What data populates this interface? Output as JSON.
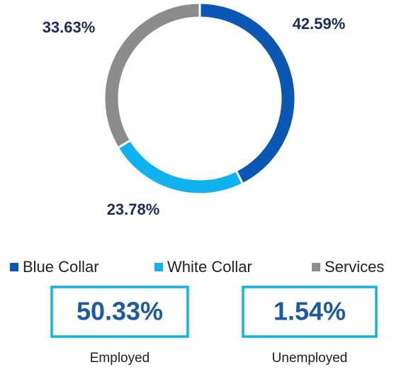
{
  "chart_data": {
    "type": "donut",
    "categories": [
      "Blue Collar",
      "White Collar",
      "Services"
    ],
    "values": [
      42.59,
      23.78,
      33.63
    ],
    "value_labels": [
      "42.59%",
      "23.78%",
      "33.63%"
    ],
    "colors": [
      "#0a58b4",
      "#0fb1ee",
      "#8c8c8c"
    ],
    "legend": "bottom"
  },
  "kpis": [
    {
      "value": "50.33%",
      "label": "Employed"
    },
    {
      "value": "1.54%",
      "label": "Unemployed"
    }
  ]
}
